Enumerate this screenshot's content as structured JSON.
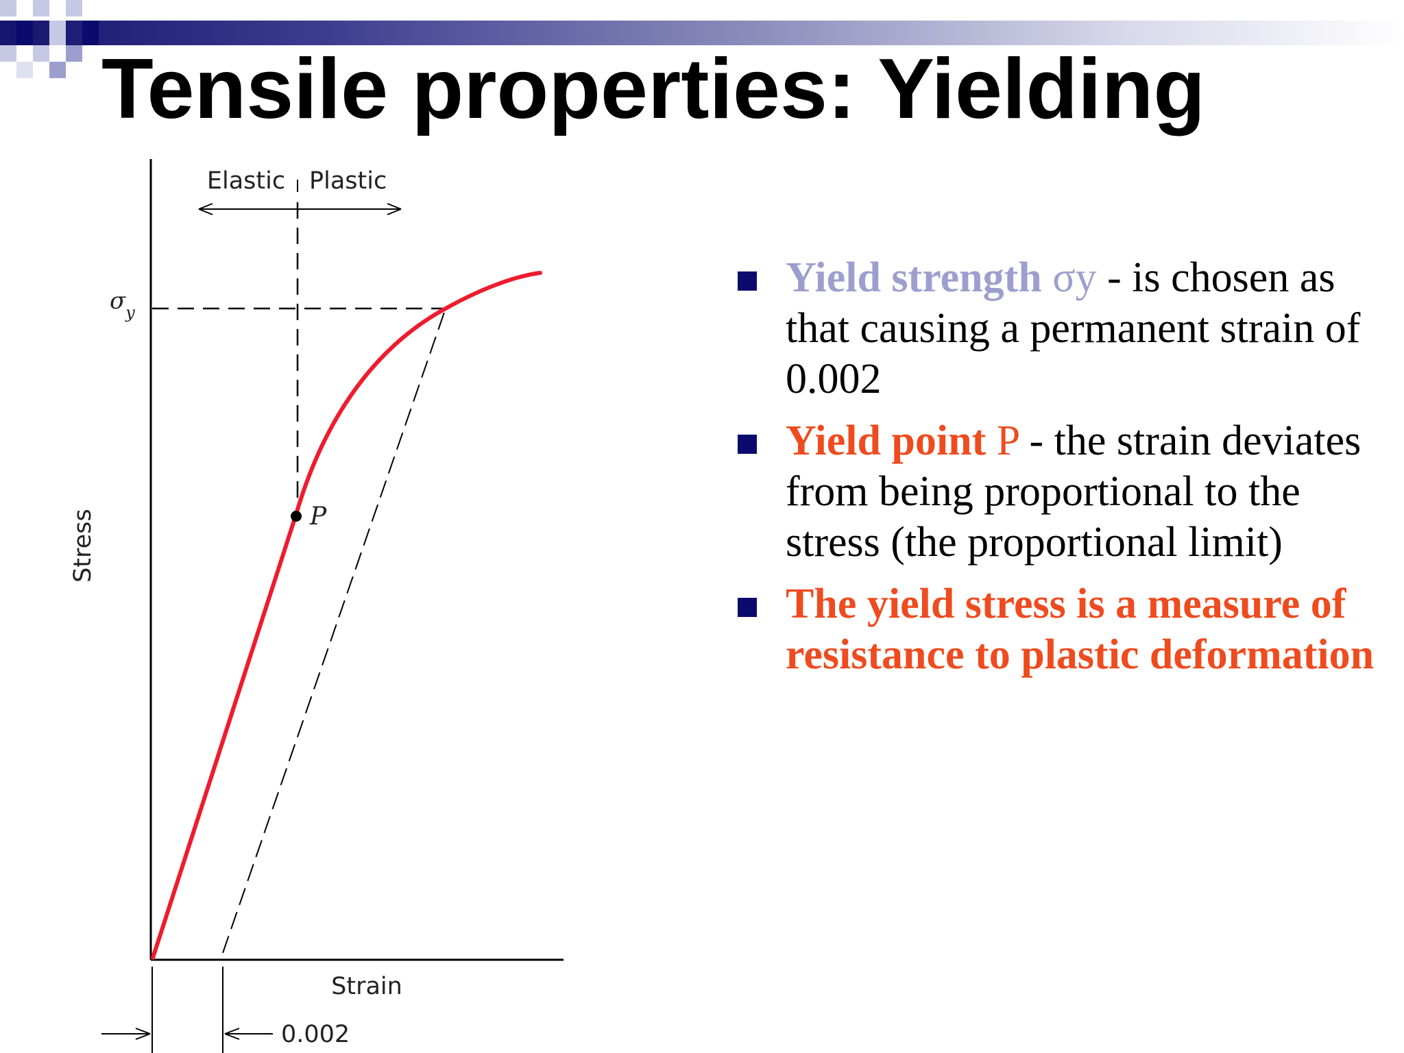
{
  "title": "Tensile properties: Yielding",
  "diagram": {
    "region_elastic": "Elastic",
    "region_plastic": "Plastic",
    "yield_strength_symbol": "σ",
    "yield_strength_subscript": "y",
    "yield_point_label": "P",
    "x_axis_label": "Strain",
    "y_axis_label": "Stress",
    "offset_label": "0.002",
    "curve_color": "#ee1c2e"
  },
  "bullets": [
    {
      "term": "Yield strength",
      "symbol": " σy",
      "text": " - is chosen as that causing a permanent strain of 0.002"
    },
    {
      "term": "Yield point",
      "symbol": " P",
      "text": " - the strain deviates from being proportional to the stress (the proportional limit)"
    },
    {
      "text": "The yield stress is a measure of resistance to plastic deformation"
    }
  ],
  "colors": {
    "header_dark": "#15156e",
    "bullet_marker": "#0b0b6e",
    "lavender": "#9c9fce",
    "accent_orange": "#ee4b1f"
  }
}
